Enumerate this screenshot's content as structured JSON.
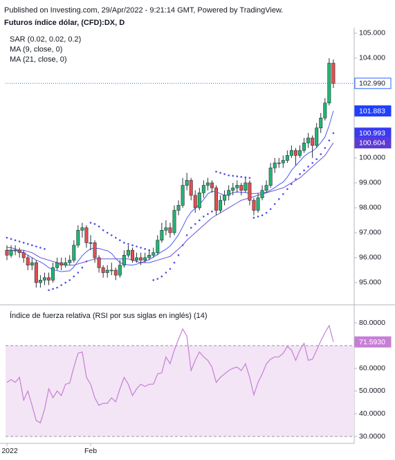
{
  "chart_data": {
    "type": "candlestick",
    "header": "Published on Investing.com, 29/Apr/2022 - 9:21:14 GMT, Powered by TradingView.",
    "title": "Futuros índice dólar, (CFD):DX, D",
    "up_color": "#22b573",
    "down_color": "#e05050",
    "ohlc": [
      [
        96.3,
        96.5,
        95.9,
        96.1
      ],
      [
        96.1,
        96.5,
        96.0,
        96.3
      ],
      [
        96.3,
        96.5,
        96.1,
        96.3
      ],
      [
        96.3,
        96.4,
        96.0,
        96.2
      ],
      [
        96.2,
        96.3,
        95.8,
        96.0
      ],
      [
        96.0,
        96.1,
        95.5,
        95.7
      ],
      [
        95.7,
        96.0,
        95.5,
        95.8
      ],
      [
        95.8,
        95.9,
        94.8,
        95.0
      ],
      [
        95.0,
        95.3,
        94.8,
        95.1
      ],
      [
        95.1,
        95.4,
        94.9,
        95.2
      ],
      [
        95.2,
        95.4,
        94.9,
        95.1
      ],
      [
        95.1,
        95.8,
        95.0,
        95.6
      ],
      [
        95.6,
        96.0,
        95.5,
        95.8
      ],
      [
        95.8,
        96.0,
        95.5,
        95.7
      ],
      [
        95.7,
        96.0,
        95.6,
        95.8
      ],
      [
        95.8,
        96.1,
        95.7,
        95.9
      ],
      [
        95.9,
        96.7,
        95.8,
        96.5
      ],
      [
        96.5,
        97.3,
        96.4,
        97.1
      ],
      [
        97.1,
        97.4,
        96.8,
        97.2
      ],
      [
        97.2,
        97.3,
        96.4,
        96.6
      ],
      [
        96.6,
        96.9,
        96.3,
        96.6
      ],
      [
        96.6,
        96.7,
        95.8,
        96.0
      ],
      [
        96.0,
        96.1,
        95.4,
        95.6
      ],
      [
        95.6,
        95.7,
        95.2,
        95.4
      ],
      [
        95.4,
        95.7,
        95.2,
        95.5
      ],
      [
        95.5,
        95.8,
        95.3,
        95.5
      ],
      [
        95.5,
        95.6,
        95.1,
        95.3
      ],
      [
        95.3,
        95.9,
        95.2,
        95.7
      ],
      [
        95.7,
        96.3,
        95.6,
        96.1
      ],
      [
        96.1,
        96.5,
        96.0,
        96.3
      ],
      [
        96.3,
        96.4,
        95.8,
        95.9
      ],
      [
        95.9,
        96.2,
        95.8,
        96.0
      ],
      [
        96.0,
        96.2,
        95.7,
        95.9
      ],
      [
        95.9,
        96.2,
        95.8,
        96.0
      ],
      [
        96.0,
        96.3,
        95.9,
        96.1
      ],
      [
        96.1,
        96.4,
        96.0,
        96.2
      ],
      [
        96.2,
        96.9,
        96.1,
        96.7
      ],
      [
        96.7,
        97.4,
        96.6,
        97.1
      ],
      [
        97.1,
        97.5,
        96.9,
        97.2
      ],
      [
        97.2,
        97.4,
        96.8,
        97.0
      ],
      [
        97.0,
        98.1,
        96.9,
        97.9
      ],
      [
        97.9,
        98.3,
        97.7,
        98.1
      ],
      [
        98.1,
        99.2,
        98.0,
        98.9
      ],
      [
        98.9,
        99.4,
        98.7,
        99.1
      ],
      [
        99.1,
        99.2,
        98.3,
        98.5
      ],
      [
        98.5,
        98.7,
        97.8,
        98.0
      ],
      [
        98.0,
        98.8,
        97.9,
        98.6
      ],
      [
        98.6,
        99.1,
        98.4,
        98.9
      ],
      [
        98.9,
        99.2,
        98.7,
        99.0
      ],
      [
        99.0,
        99.1,
        98.6,
        98.8
      ],
      [
        98.8,
        98.9,
        97.7,
        97.9
      ],
      [
        97.9,
        98.5,
        97.8,
        98.3
      ],
      [
        98.3,
        98.7,
        98.1,
        98.5
      ],
      [
        98.5,
        98.9,
        98.3,
        98.7
      ],
      [
        98.7,
        99.0,
        98.5,
        98.8
      ],
      [
        98.8,
        99.1,
        98.6,
        98.9
      ],
      [
        98.9,
        99.0,
        98.5,
        98.7
      ],
      [
        98.7,
        99.2,
        98.6,
        99.0
      ],
      [
        99.0,
        99.1,
        98.1,
        98.3
      ],
      [
        98.3,
        98.4,
        97.7,
        97.9
      ],
      [
        97.9,
        98.6,
        97.8,
        98.4
      ],
      [
        98.4,
        98.9,
        98.3,
        98.7
      ],
      [
        98.7,
        99.1,
        98.6,
        98.9
      ],
      [
        98.9,
        99.8,
        98.8,
        99.6
      ],
      [
        99.6,
        100.0,
        99.4,
        99.8
      ],
      [
        99.8,
        100.0,
        99.6,
        99.8
      ],
      [
        99.8,
        100.1,
        99.6,
        99.9
      ],
      [
        99.9,
        100.3,
        99.8,
        100.1
      ],
      [
        100.1,
        100.5,
        100.0,
        100.3
      ],
      [
        100.3,
        100.4,
        99.7,
        100.1
      ],
      [
        100.1,
        100.5,
        100.0,
        100.3
      ],
      [
        100.3,
        100.8,
        100.2,
        100.6
      ],
      [
        100.6,
        101.0,
        100.4,
        100.8
      ],
      [
        100.8,
        100.9,
        100.0,
        100.5
      ],
      [
        100.5,
        101.4,
        100.4,
        101.2
      ],
      [
        101.2,
        101.8,
        101.0,
        101.6
      ],
      [
        101.6,
        102.4,
        101.5,
        102.2
      ],
      [
        102.2,
        104.0,
        102.1,
        103.8
      ],
      [
        103.8,
        103.95,
        102.8,
        102.99
      ]
    ],
    "close_label": "102.990",
    "price_line_color": "#2962ff",
    "indicators": [
      {
        "name": "SAR (0.02, 0.02, 0.2)",
        "style": "dots",
        "color": "#4b4bea",
        "label_color": "#3a3af0",
        "last_label": "100.993",
        "values": [
          96.8,
          96.75,
          96.7,
          96.65,
          96.6,
          96.55,
          96.5,
          96.45,
          96.4,
          96.35,
          94.7,
          94.75,
          94.8,
          94.9,
          95.0,
          95.1,
          95.25,
          95.4,
          95.6,
          95.85,
          97.4,
          97.35,
          97.25,
          97.1,
          97.0,
          96.9,
          96.8,
          96.7,
          96.6,
          96.55,
          96.5,
          96.45,
          96.4,
          96.35,
          96.3,
          95.1,
          95.15,
          95.25,
          95.4,
          95.55,
          95.8,
          96.1,
          96.5,
          96.9,
          97.2,
          97.35,
          97.5,
          97.65,
          97.75,
          97.85,
          99.45,
          99.4,
          99.35,
          99.3,
          99.28,
          99.26,
          99.24,
          99.22,
          99.2,
          97.6,
          97.65,
          97.7,
          97.8,
          97.95,
          98.15,
          98.35,
          98.55,
          98.75,
          98.95,
          99.15,
          99.35,
          99.5,
          99.65,
          99.8,
          99.95,
          100.15,
          100.4,
          100.7,
          100.993
        ]
      },
      {
        "name": "MA (9, close, 0)",
        "style": "line",
        "color": "#4a5cf0",
        "label_color": "#1f3fff",
        "last_label": "101.883",
        "values": [
          96.3,
          96.3,
          96.3,
          96.25,
          96.2,
          96.1,
          96.0,
          95.9,
          95.83,
          95.73,
          95.6,
          95.52,
          95.48,
          95.44,
          95.46,
          95.47,
          95.63,
          95.86,
          96.08,
          96.24,
          96.36,
          96.38,
          96.37,
          96.32,
          96.28,
          96.17,
          95.97,
          95.8,
          95.74,
          95.71,
          95.7,
          95.74,
          95.8,
          95.86,
          95.92,
          96.02,
          96.13,
          96.24,
          96.34,
          96.47,
          96.68,
          96.92,
          97.24,
          97.58,
          97.83,
          97.98,
          98.14,
          98.33,
          98.56,
          98.66,
          98.63,
          98.57,
          98.5,
          98.52,
          98.61,
          98.64,
          98.62,
          98.62,
          98.57,
          98.57,
          98.58,
          98.6,
          98.62,
          98.71,
          98.81,
          98.93,
          99.03,
          99.23,
          99.5,
          99.69,
          99.87,
          100.06,
          100.19,
          100.27,
          100.42,
          100.61,
          100.84,
          101.3,
          101.883
        ]
      },
      {
        "name": "MA (21, close, 0)",
        "style": "line",
        "color": "#6a4fd8",
        "label_color": "#5c3ad6",
        "last_label": "100.604",
        "values": [
          96.4,
          96.4,
          96.35,
          96.3,
          96.3,
          96.25,
          96.2,
          96.1,
          96.0,
          95.95,
          95.9,
          95.85,
          95.8,
          95.75,
          95.7,
          95.7,
          95.7,
          95.75,
          95.8,
          95.85,
          95.9,
          95.95,
          95.95,
          95.95,
          95.95,
          95.95,
          95.95,
          95.95,
          95.95,
          95.95,
          95.9,
          95.85,
          95.8,
          95.8,
          95.8,
          95.85,
          95.9,
          95.95,
          96.0,
          96.05,
          96.2,
          96.35,
          96.5,
          96.7,
          96.85,
          97.0,
          97.15,
          97.3,
          97.45,
          97.6,
          97.7,
          97.8,
          97.9,
          98.0,
          98.1,
          98.2,
          98.3,
          98.35,
          98.4,
          98.45,
          98.5,
          98.55,
          98.6,
          98.65,
          98.7,
          98.75,
          98.8,
          98.9,
          99.0,
          99.1,
          99.2,
          99.35,
          99.5,
          99.65,
          99.8,
          99.95,
          100.1,
          100.35,
          100.604
        ]
      }
    ],
    "ylim": [
      94.11,
      105.22
    ],
    "yticks": [
      {
        "value": 95,
        "label": "95.000"
      },
      {
        "value": 96,
        "label": "96.000"
      },
      {
        "value": 97,
        "label": "97.000"
      },
      {
        "value": 98,
        "label": "98.000"
      },
      {
        "value": 99,
        "label": "99.000"
      },
      {
        "value": 100,
        "label": "100.000"
      },
      {
        "value": 104,
        "label": "104.000"
      },
      {
        "value": 105,
        "label": "105.000"
      }
    ],
    "xticks": [
      {
        "value": 0,
        "label": "2022"
      },
      {
        "value": 20,
        "label": "Feb"
      }
    ],
    "rsi": {
      "name": "Índice de fuerza relativa (RSI por sus siglas en inglés) (14)",
      "color": "#c77ed6",
      "band_color": "#f3e5f5",
      "last_label": "71.5930",
      "values": [
        53.8,
        55,
        53.8,
        56,
        46,
        50,
        43.7,
        37,
        36,
        42,
        51,
        47,
        50,
        48,
        53,
        53.5,
        60.5,
        66.6,
        67.2,
        56,
        53,
        47,
        43.7,
        44.6,
        44.6,
        47,
        45.2,
        51,
        56,
        53,
        48,
        51,
        53,
        52,
        53,
        53,
        57.5,
        58,
        65,
        62,
        68,
        72.7,
        77.3,
        74.2,
        59,
        63.5,
        67.2,
        65,
        63.5,
        60.5,
        53.8,
        56,
        57.5,
        59,
        60,
        60.5,
        59,
        62,
        56,
        48.3,
        53.8,
        57.5,
        62,
        64,
        65,
        65,
        66.6,
        69.6,
        68,
        63.5,
        68,
        71,
        63.5,
        64,
        68,
        72,
        75.7,
        78.8,
        71.593
      ],
      "bands": [
        30,
        70
      ],
      "ylim": [
        26.95,
        85.8
      ],
      "yticks": [
        {
          "value": 30,
          "label": "30.0000"
        },
        {
          "value": 40,
          "label": "40.0000"
        },
        {
          "value": 50,
          "label": "50.0000"
        },
        {
          "value": 60,
          "label": "60.0000"
        },
        {
          "value": 80,
          "label": "80.0000"
        }
      ]
    }
  }
}
